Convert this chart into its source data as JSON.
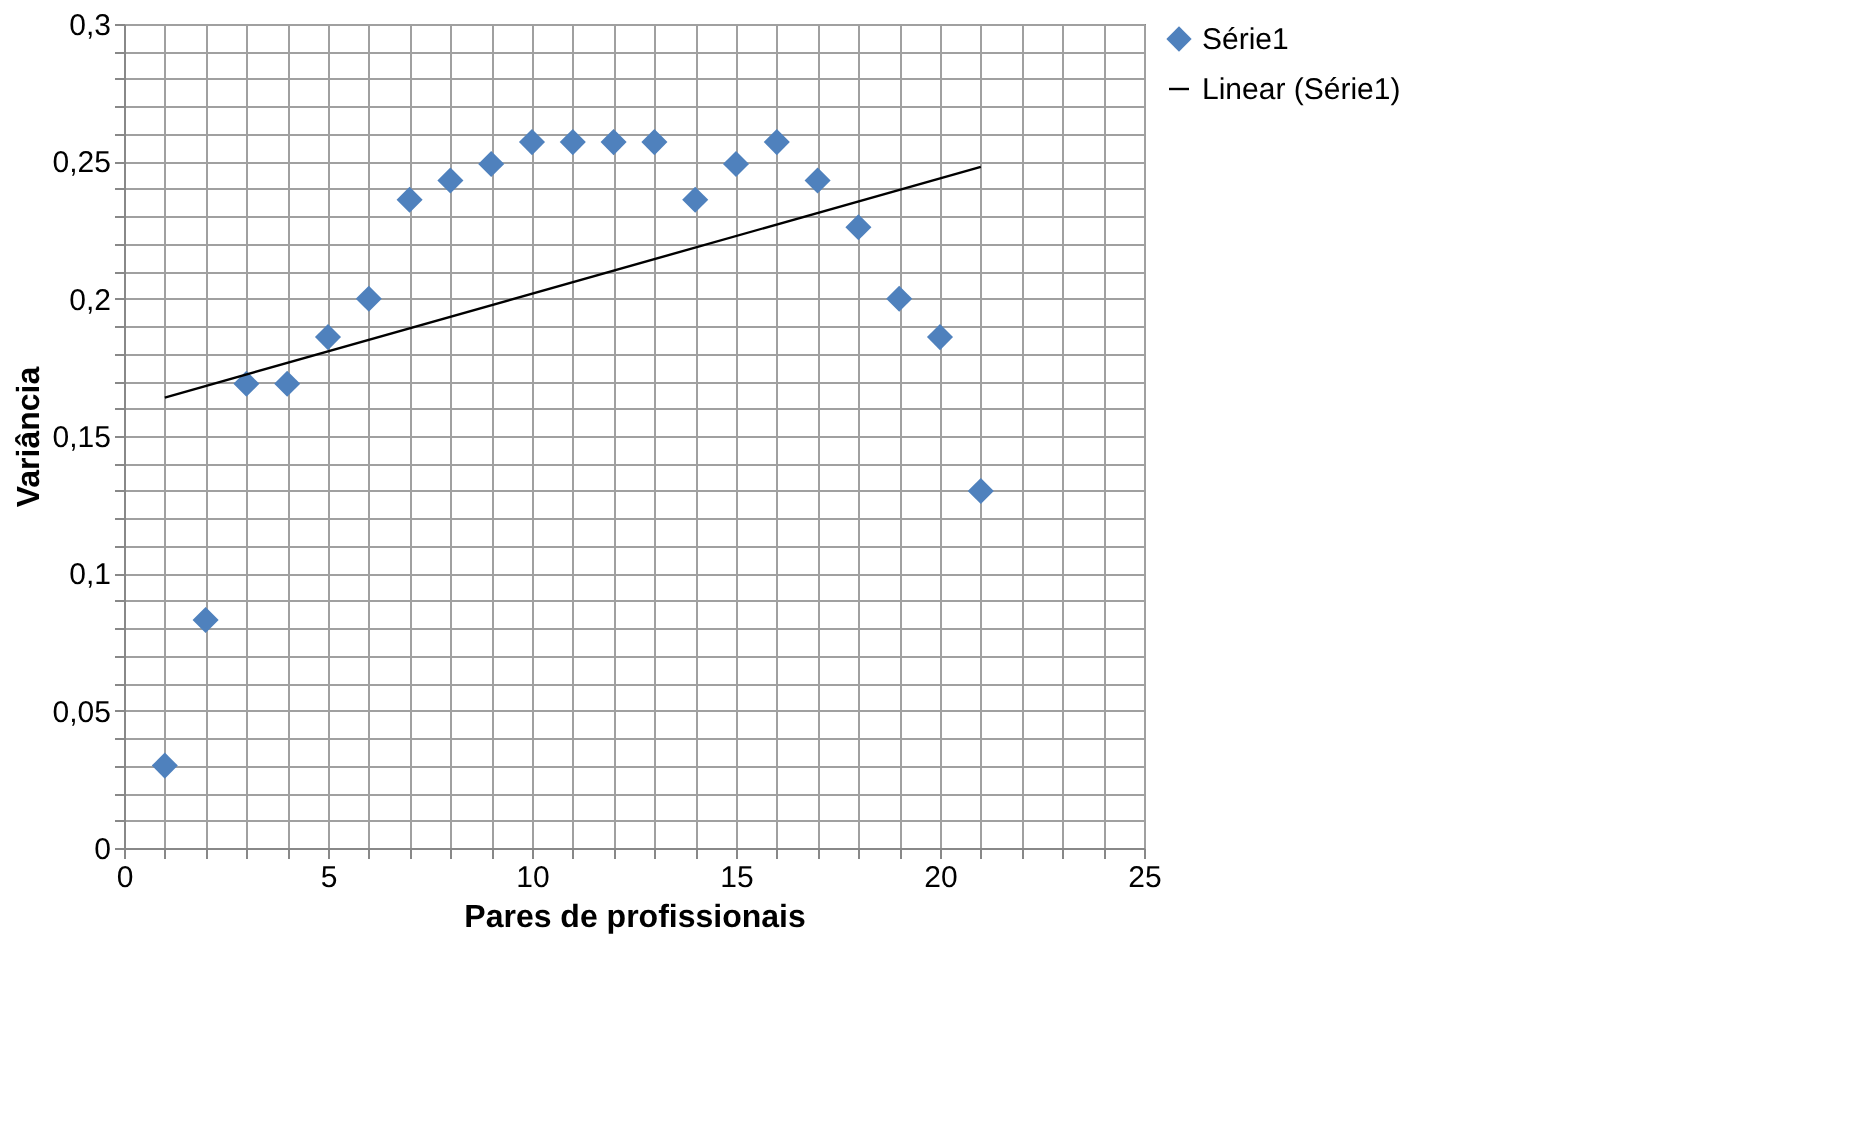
{
  "chart_data": {
    "type": "scatter",
    "xlabel": "Pares de profissionais",
    "ylabel": "Variância",
    "x": [
      1,
      2,
      3,
      4,
      5,
      6,
      7,
      8,
      9,
      10,
      11,
      12,
      13,
      14,
      15,
      16,
      17,
      18,
      19,
      20,
      21
    ],
    "series": [
      {
        "name": "Série1",
        "type": "scatter",
        "color": "#4f81bd",
        "marker": "diamond",
        "values": [
          0.03,
          0.083,
          0.169,
          0.169,
          0.186,
          0.2,
          0.236,
          0.243,
          0.249,
          0.257,
          0.257,
          0.257,
          0.257,
          0.236,
          0.249,
          0.257,
          0.243,
          0.226,
          0.2,
          0.186,
          0.13
        ]
      },
      {
        "name": "Linear (Série1)",
        "type": "line",
        "color": "#000000",
        "line_style": "solid",
        "x": [
          1,
          21
        ],
        "values": [
          0.164,
          0.248
        ]
      }
    ],
    "xlim": [
      0,
      25
    ],
    "xticks": [
      0,
      {
        "value": 1,
        "label": null
      },
      {
        "value": 2,
        "label": null
      },
      {
        "value": 3,
        "label": null
      },
      {
        "value": 4,
        "label": null
      },
      5,
      {
        "value": 6,
        "label": null
      },
      {
        "value": 7,
        "label": null
      },
      {
        "value": 8,
        "label": null
      },
      {
        "value": 9,
        "label": null
      },
      10,
      {
        "value": 11,
        "label": null
      },
      {
        "value": 12,
        "label": null
      },
      {
        "value": 13,
        "label": null
      },
      {
        "value": 14,
        "label": null
      },
      15,
      {
        "value": 16,
        "label": null
      },
      {
        "value": 17,
        "label": null
      },
      {
        "value": 18,
        "label": null
      },
      {
        "value": 19,
        "label": null
      },
      20,
      {
        "value": 21,
        "label": null
      },
      {
        "value": 22,
        "label": null
      },
      {
        "value": 23,
        "label": null
      },
      {
        "value": 24,
        "label": null
      },
      25
    ],
    "ylim": [
      0,
      0.3
    ],
    "yticks": [
      0,
      {
        "value": 0.01,
        "label": null
      },
      {
        "value": 0.02,
        "label": null
      },
      {
        "value": 0.03,
        "label": null
      },
      {
        "value": 0.04,
        "label": null
      },
      {
        "value": 0.05,
        "label": "0,05"
      },
      {
        "value": 0.06,
        "label": null
      },
      {
        "value": 0.07,
        "label": null
      },
      {
        "value": 0.08,
        "label": null
      },
      {
        "value": 0.09,
        "label": null
      },
      {
        "value": 0.1,
        "label": "0,1"
      },
      {
        "value": 0.11,
        "label": null
      },
      {
        "value": 0.12,
        "label": null
      },
      {
        "value": 0.13,
        "label": null
      },
      {
        "value": 0.14,
        "label": null
      },
      {
        "value": 0.15,
        "label": "0,15"
      },
      {
        "value": 0.16,
        "label": null
      },
      {
        "value": 0.17,
        "label": null
      },
      {
        "value": 0.18,
        "label": null
      },
      {
        "value": 0.19,
        "label": null
      },
      {
        "value": 0.2,
        "label": "0,2"
      },
      {
        "value": 0.21,
        "label": null
      },
      {
        "value": 0.22,
        "label": null
      },
      {
        "value": 0.23,
        "label": null
      },
      {
        "value": 0.24,
        "label": null
      },
      {
        "value": 0.25,
        "label": "0,25"
      },
      {
        "value": 0.26,
        "label": null
      },
      {
        "value": 0.27,
        "label": null
      },
      {
        "value": 0.28,
        "label": null
      },
      {
        "value": 0.29,
        "label": null
      },
      {
        "value": 0.3,
        "label": "0,3"
      }
    ],
    "grid": true,
    "legend": "right"
  }
}
